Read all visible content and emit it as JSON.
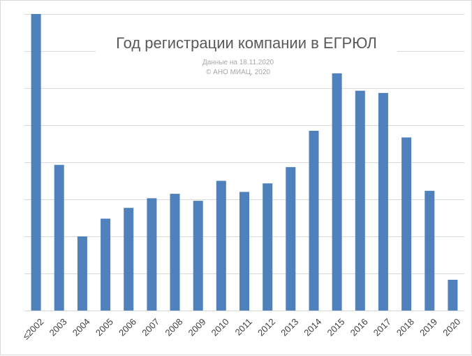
{
  "chart_data": {
    "type": "bar",
    "title": "Год регистрации компании в ЕГРЮЛ",
    "subtitle_lines": [
      "Данные на 18.11.2020",
      "© АНО МИАЦ, 2020"
    ],
    "categories": [
      "≤2002",
      "2003",
      "2004",
      "2005",
      "2006",
      "2007",
      "2008",
      "2009",
      "2010",
      "2011",
      "2012",
      "2013",
      "2014",
      "2015",
      "2016",
      "2017",
      "2018",
      "2019",
      "2020"
    ],
    "values": [
      8.0,
      3.93,
      2.0,
      2.48,
      2.77,
      3.03,
      3.15,
      2.96,
      3.5,
      3.2,
      3.43,
      3.87,
      4.85,
      6.4,
      5.93,
      5.87,
      4.67,
      3.23,
      0.83
    ],
    "ylim": [
      0,
      8
    ],
    "y_gridlines": 8,
    "y_tick_labels_shown": false,
    "color": "#4f81bd",
    "grid": true,
    "legend": "none",
    "xlabel": "",
    "ylabel": ""
  }
}
